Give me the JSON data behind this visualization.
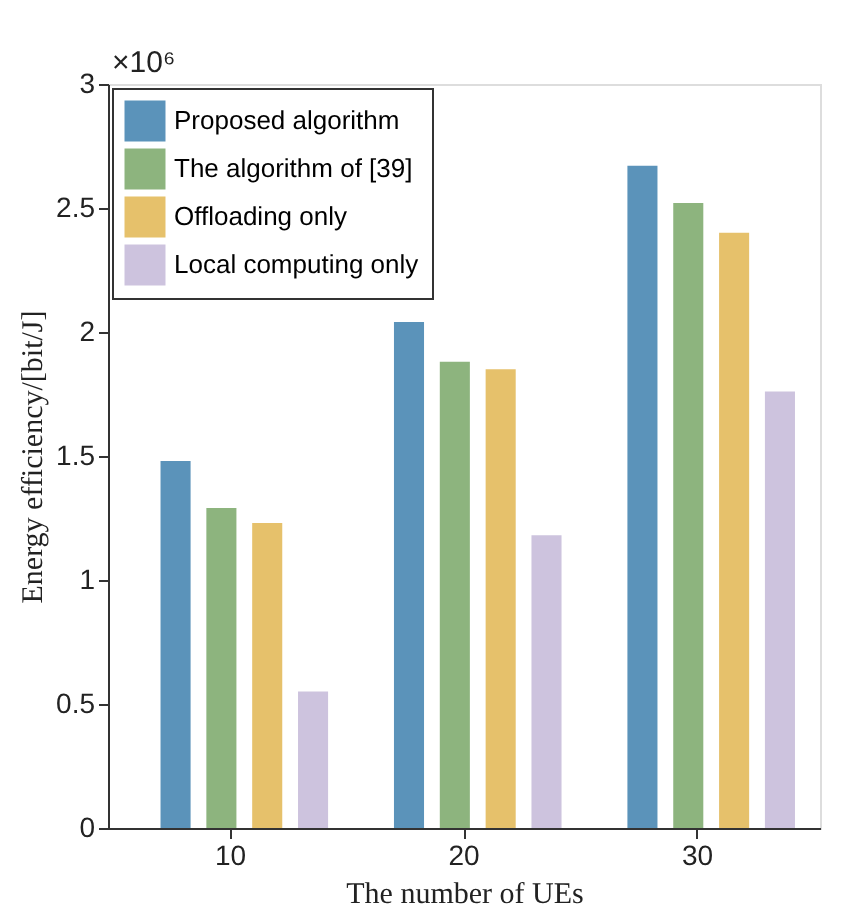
{
  "chart_data": {
    "type": "bar",
    "xlabel": "The number of UEs",
    "ylabel": "Energy efficiency/[bit/J]",
    "categories": [
      "10",
      "20",
      "30"
    ],
    "series": [
      {
        "name": "Proposed algorithm",
        "color": "#5b93ba",
        "values": [
          1.48,
          2.04,
          2.67
        ]
      },
      {
        "name": "The algorithm of [39]",
        "color": "#8db47e",
        "values": [
          1.29,
          1.88,
          2.52
        ]
      },
      {
        "name": "Offloading only",
        "color": "#e6c16b",
        "values": [
          1.23,
          1.85,
          2.4
        ]
      },
      {
        "name": "Local computing only",
        "color": "#cdc3de",
        "values": [
          0.55,
          1.18,
          1.76
        ]
      }
    ],
    "ylim": [
      0,
      3
    ],
    "yticks": [
      0,
      0.5,
      1,
      1.5,
      2,
      2.5,
      3
    ],
    "annotations": [
      "×10⁶"
    ],
    "legend": "top left",
    "grid": false
  }
}
